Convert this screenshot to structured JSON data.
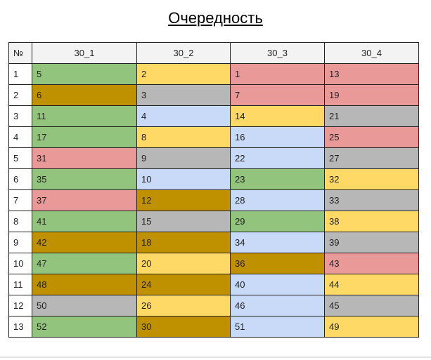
{
  "title": "Очередность",
  "table": {
    "headers": [
      "№",
      "30_1",
      "30_2",
      "30_3",
      "30_4"
    ],
    "palette": {
      "green": "#93c47d",
      "gold": "#bf9000",
      "yellow": "#ffd966",
      "gray": "#b7b7b7",
      "pink": "#ea9999",
      "blue": "#c9daf8"
    },
    "rows": [
      {
        "n": "1",
        "cells": [
          {
            "v": "5",
            "c": "green"
          },
          {
            "v": "2",
            "c": "yellow"
          },
          {
            "v": "1",
            "c": "pink"
          },
          {
            "v": "13",
            "c": "pink"
          }
        ]
      },
      {
        "n": "2",
        "cells": [
          {
            "v": "6",
            "c": "gold"
          },
          {
            "v": "3",
            "c": "gray"
          },
          {
            "v": "7",
            "c": "pink"
          },
          {
            "v": "19",
            "c": "pink"
          }
        ]
      },
      {
        "n": "3",
        "cells": [
          {
            "v": "11",
            "c": "green"
          },
          {
            "v": "4",
            "c": "blue"
          },
          {
            "v": "14",
            "c": "yellow"
          },
          {
            "v": "21",
            "c": "gray"
          }
        ]
      },
      {
        "n": "4",
        "cells": [
          {
            "v": "17",
            "c": "green"
          },
          {
            "v": "8",
            "c": "yellow"
          },
          {
            "v": "16",
            "c": "blue"
          },
          {
            "v": "25",
            "c": "pink"
          }
        ]
      },
      {
        "n": "5",
        "cells": [
          {
            "v": "31",
            "c": "pink"
          },
          {
            "v": "9",
            "c": "gray"
          },
          {
            "v": "22",
            "c": "blue"
          },
          {
            "v": "27",
            "c": "gray"
          }
        ]
      },
      {
        "n": "6",
        "cells": [
          {
            "v": "35",
            "c": "green"
          },
          {
            "v": "10",
            "c": "blue"
          },
          {
            "v": "23",
            "c": "green"
          },
          {
            "v": "32",
            "c": "yellow"
          }
        ]
      },
      {
        "n": "7",
        "cells": [
          {
            "v": "37",
            "c": "pink"
          },
          {
            "v": "12",
            "c": "gold"
          },
          {
            "v": "28",
            "c": "blue"
          },
          {
            "v": "33",
            "c": "gray"
          }
        ]
      },
      {
        "n": "8",
        "cells": [
          {
            "v": "41",
            "c": "green"
          },
          {
            "v": "15",
            "c": "gray"
          },
          {
            "v": "29",
            "c": "green"
          },
          {
            "v": "38",
            "c": "yellow"
          }
        ]
      },
      {
        "n": "9",
        "cells": [
          {
            "v": "42",
            "c": "gold"
          },
          {
            "v": "18",
            "c": "gold"
          },
          {
            "v": "34",
            "c": "blue"
          },
          {
            "v": "39",
            "c": "gray"
          }
        ]
      },
      {
        "n": "10",
        "cells": [
          {
            "v": "47",
            "c": "green"
          },
          {
            "v": "20",
            "c": "yellow"
          },
          {
            "v": "36",
            "c": "gold"
          },
          {
            "v": "43",
            "c": "pink"
          }
        ]
      },
      {
        "n": "11",
        "cells": [
          {
            "v": "48",
            "c": "gold"
          },
          {
            "v": "24",
            "c": "gold"
          },
          {
            "v": "40",
            "c": "blue"
          },
          {
            "v": "44",
            "c": "yellow"
          }
        ]
      },
      {
        "n": "12",
        "cells": [
          {
            "v": "50",
            "c": "gray"
          },
          {
            "v": "26",
            "c": "yellow"
          },
          {
            "v": "46",
            "c": "blue"
          },
          {
            "v": "45",
            "c": "gray"
          }
        ]
      },
      {
        "n": "13",
        "cells": [
          {
            "v": "52",
            "c": "green"
          },
          {
            "v": "30",
            "c": "gold"
          },
          {
            "v": "51",
            "c": "blue"
          },
          {
            "v": "49",
            "c": "yellow"
          }
        ]
      }
    ]
  }
}
